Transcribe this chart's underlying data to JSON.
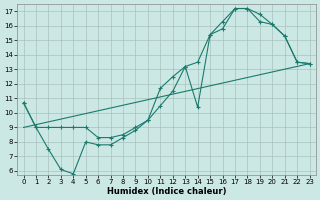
{
  "bg_color": "#cce8e4",
  "line_color": "#1a7a6e",
  "xlabel": "Humidex (Indice chaleur)",
  "xlim": [
    -0.5,
    23.5
  ],
  "ylim": [
    5.7,
    17.5
  ],
  "xticks": [
    0,
    1,
    2,
    3,
    4,
    5,
    6,
    7,
    8,
    9,
    10,
    11,
    12,
    13,
    14,
    15,
    16,
    17,
    18,
    19,
    20,
    21,
    22,
    23
  ],
  "yticks": [
    6,
    7,
    8,
    9,
    10,
    11,
    12,
    13,
    14,
    15,
    16,
    17
  ],
  "curve1_x": [
    0,
    1,
    2,
    3,
    4,
    5,
    6,
    7,
    8,
    9,
    10,
    11,
    12,
    13,
    14,
    15,
    16,
    17,
    18,
    19,
    20,
    21,
    22,
    23
  ],
  "curve1_y": [
    10.7,
    9.0,
    7.5,
    6.1,
    5.8,
    8.0,
    7.8,
    7.8,
    8.3,
    8.8,
    9.5,
    11.7,
    12.5,
    13.2,
    10.4,
    15.4,
    16.3,
    17.2,
    17.2,
    16.8,
    16.1,
    15.3,
    13.5,
    13.4
  ],
  "curve2_x": [
    0,
    1,
    2,
    3,
    4,
    5,
    6,
    7,
    8,
    9,
    10,
    11,
    12,
    13,
    14,
    15,
    16,
    17,
    18,
    19,
    20,
    21,
    22,
    23
  ],
  "curve2_y": [
    10.7,
    9.0,
    9.0,
    9.0,
    9.0,
    9.0,
    8.3,
    8.3,
    8.5,
    9.0,
    9.5,
    10.5,
    11.5,
    13.2,
    13.5,
    15.4,
    15.8,
    17.2,
    17.2,
    16.3,
    16.1,
    15.3,
    13.5,
    13.4
  ],
  "line3_x": [
    0,
    23
  ],
  "line3_y": [
    9.0,
    13.4
  ],
  "xlabel_fontsize": 6.0,
  "tick_fontsize": 5.0
}
